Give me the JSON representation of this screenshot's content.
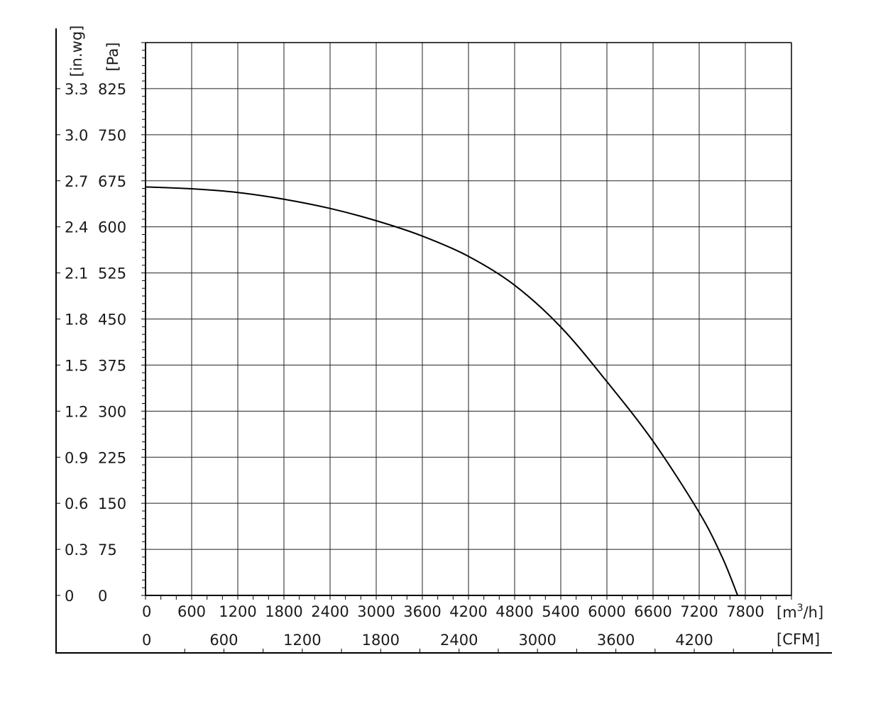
{
  "chart_data": {
    "type": "line",
    "title": "",
    "xlabel": "m³/h",
    "ylabel": "Pa",
    "x_unit_primary": "[m³/h]",
    "x_unit_secondary": "[CFM]",
    "y_unit_primary": "[Pa]",
    "y_unit_secondary": "[in.wg]",
    "xlim": [
      0,
      8400
    ],
    "ylim": [
      0,
      900
    ],
    "x_ticks": [
      "0",
      "600",
      "1200",
      "1800",
      "2400",
      "3000",
      "3600",
      "4200",
      "4800",
      "5400",
      "6000",
      "6600",
      "7200",
      "7800"
    ],
    "x_secondary_ticks": [
      "0",
      "600",
      "1200",
      "1800",
      "2400",
      "3000",
      "3600",
      "4200"
    ],
    "y_ticks": [
      "0",
      "75",
      "150",
      "225",
      "300",
      "375",
      "450",
      "525",
      "600",
      "675",
      "750",
      "825"
    ],
    "y_secondary_ticks": [
      "0",
      "0.3",
      "0.6",
      "0.9",
      "1.2",
      "1.5",
      "1.8",
      "2.1",
      "2.4",
      "2.7",
      "3.0",
      "3.3"
    ],
    "grid": true,
    "line_color": "#000000",
    "series": [
      {
        "x": [
          0,
          600,
          1200,
          1800,
          2400,
          3000,
          3600,
          4200,
          4800,
          5400,
          6000,
          6600,
          7200,
          7500,
          7700
        ],
        "y": [
          665,
          662,
          656,
          645,
          630,
          610,
          585,
          552,
          505,
          437,
          348,
          251,
          135,
          62,
          0
        ]
      }
    ]
  }
}
